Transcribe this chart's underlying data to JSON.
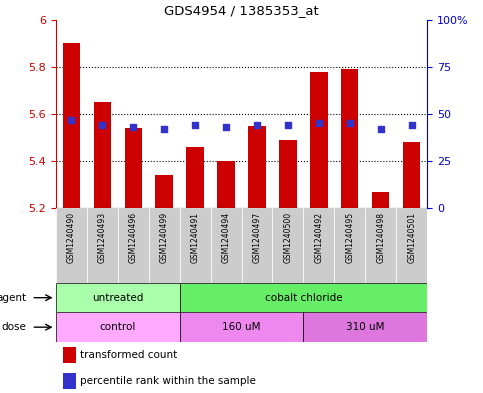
{
  "title": "GDS4954 / 1385353_at",
  "samples": [
    "GSM1240490",
    "GSM1240493",
    "GSM1240496",
    "GSM1240499",
    "GSM1240491",
    "GSM1240494",
    "GSM1240497",
    "GSM1240500",
    "GSM1240492",
    "GSM1240495",
    "GSM1240498",
    "GSM1240501"
  ],
  "transformed_count": [
    5.9,
    5.65,
    5.54,
    5.34,
    5.46,
    5.4,
    5.55,
    5.49,
    5.78,
    5.79,
    5.27,
    5.48
  ],
  "percentile_rank": [
    47,
    44,
    43,
    42,
    44,
    43,
    44,
    44,
    45,
    45,
    42,
    44
  ],
  "ymin": 5.2,
  "ymax": 6.0,
  "yticks": [
    5.2,
    5.4,
    5.6,
    5.8,
    6.0
  ],
  "ytick_labels_left": [
    "5.2",
    "5.4",
    "5.6",
    "5.8",
    "6"
  ],
  "ytick_labels_right": [
    "0",
    "25",
    "50",
    "75",
    "100%"
  ],
  "bar_color": "#cc0000",
  "dot_color": "#3333cc",
  "bar_bottom": 5.2,
  "agent_groups": [
    {
      "label": "untreated",
      "start": 0,
      "end": 4,
      "color": "#aaffaa"
    },
    {
      "label": "cobalt chloride",
      "start": 4,
      "end": 12,
      "color": "#66ee66"
    }
  ],
  "dose_groups": [
    {
      "label": "control",
      "start": 0,
      "end": 4,
      "color": "#ffaaff"
    },
    {
      "label": "160 uM",
      "start": 4,
      "end": 8,
      "color": "#ee88ee"
    },
    {
      "label": "310 uM",
      "start": 8,
      "end": 12,
      "color": "#dd77dd"
    }
  ],
  "agent_label": "agent",
  "dose_label": "dose",
  "legend_bar_label": "transformed count",
  "legend_dot_label": "percentile rank within the sample",
  "axis_left_color": "#cc0000",
  "axis_right_color": "#0000cc",
  "sample_bg_color": "#cccccc"
}
